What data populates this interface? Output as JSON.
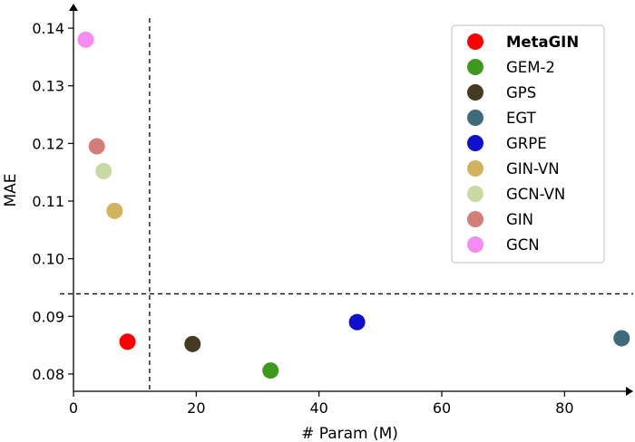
{
  "chart_data": {
    "type": "scatter",
    "title": "",
    "xlabel": "# Param (M)",
    "ylabel": "MAE",
    "xlim": [
      0,
      90
    ],
    "ylim": [
      0.077,
      0.143
    ],
    "x_ticks": [
      0,
      20,
      40,
      60,
      80
    ],
    "y_ticks": [
      0.08,
      0.09,
      0.1,
      0.11,
      0.12,
      0.13,
      0.14
    ],
    "x_tick_labels": [
      "0",
      "20",
      "40",
      "60",
      "80"
    ],
    "y_tick_labels": [
      "0.08",
      "0.09",
      "0.10",
      "0.11",
      "0.12",
      "0.13",
      "0.14"
    ],
    "reference_lines": {
      "vertical_x": 12.4,
      "horizontal_y": 0.0939,
      "style": "dashed"
    },
    "legend": {
      "placement": "top-right"
    },
    "series": [
      {
        "name": "MetaGIN",
        "x": 8.8,
        "y": 0.0856,
        "color": "#ff0000",
        "bold": true
      },
      {
        "name": "GEM-2",
        "x": 32.1,
        "y": 0.0806,
        "color": "#3e9a1f"
      },
      {
        "name": "GPS",
        "x": 19.4,
        "y": 0.0852,
        "color": "#453b23"
      },
      {
        "name": "EGT",
        "x": 89.3,
        "y": 0.0862,
        "color": "#3e6a7b"
      },
      {
        "name": "GRPE",
        "x": 46.2,
        "y": 0.089,
        "color": "#0f10cc"
      },
      {
        "name": "GIN-VN",
        "x": 6.7,
        "y": 0.1083,
        "color": "#d2b25c"
      },
      {
        "name": "GCN-VN",
        "x": 4.9,
        "y": 0.1152,
        "color": "#c9d9a3"
      },
      {
        "name": "GIN",
        "x": 3.8,
        "y": 0.1195,
        "color": "#d47e78"
      },
      {
        "name": "GCN",
        "x": 2.0,
        "y": 0.138,
        "color": "#f58cf2"
      }
    ]
  }
}
